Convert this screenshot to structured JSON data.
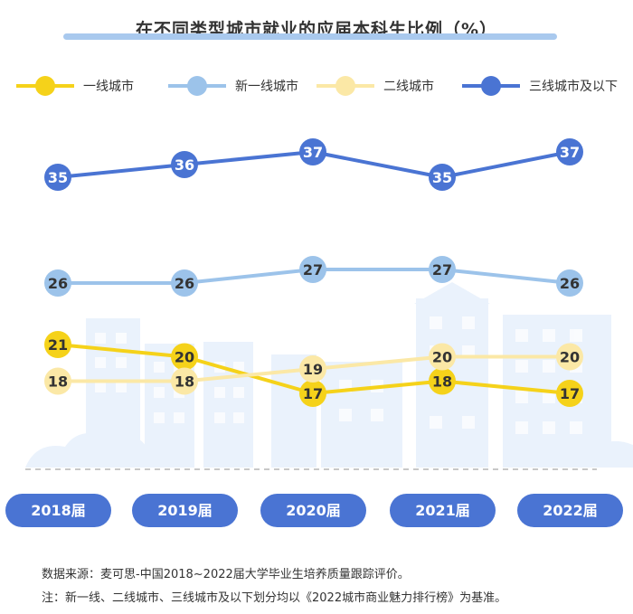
{
  "title": "在不同类型城市就业的应届本科生比例（%）",
  "chart_data": {
    "type": "line",
    "title": "在不同类型城市就业的应届本科生比例（%）",
    "categories": [
      "2018届",
      "2019届",
      "2020届",
      "2021届",
      "2022届"
    ],
    "ylabel": "%",
    "series": [
      {
        "name": "一线城市",
        "values": [
          21,
          20,
          17,
          18,
          17
        ],
        "color": "#f5d21a",
        "text_color": "#333333"
      },
      {
        "name": "新一线城市",
        "values": [
          26,
          26,
          27,
          27,
          26
        ],
        "color": "#9cc3ea",
        "text_color": "#333333"
      },
      {
        "name": "二线城市",
        "values": [
          18,
          18,
          19,
          20,
          20
        ],
        "color": "#fbe8a6",
        "text_color": "#333333"
      },
      {
        "name": "三线城市及以下",
        "values": [
          35,
          36,
          37,
          35,
          37
        ],
        "color": "#4a74d3",
        "text_color": "#ffffff"
      }
    ]
  },
  "footnotes": {
    "source": "数据来源：麦可思-中国2018~2022届大学毕业生培养质量跟踪评价。",
    "note": "注：新一线、二线城市、三线城市及以下划分均以《2022城市商业魅力排行榜》为基准。"
  }
}
